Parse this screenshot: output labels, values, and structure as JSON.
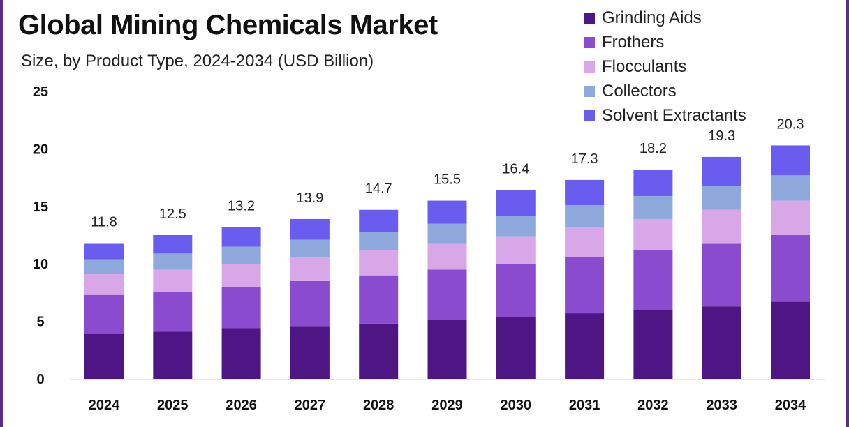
{
  "chart_data": {
    "type": "bar",
    "stacked": true,
    "title": "Global Mining Chemicals Market",
    "subtitle": "Size, by Product Type, 2024-2034 (USD Billion)",
    "xlabel": "",
    "ylabel": "",
    "ylim": [
      0,
      25
    ],
    "yticks": [
      "0",
      "5",
      "10",
      "15",
      "20",
      "25"
    ],
    "categories": [
      "2024",
      "2025",
      "2026",
      "2027",
      "2028",
      "2029",
      "2030",
      "2031",
      "2032",
      "2033",
      "2034"
    ],
    "totals": [
      "11.8",
      "12.5",
      "13.2",
      "13.9",
      "14.7",
      "15.5",
      "16.4",
      "17.3",
      "18.2",
      "19.3",
      "20.3"
    ],
    "legend_position": "top-right",
    "series": [
      {
        "name": "Grinding Aids",
        "color": "#4e1585",
        "values": [
          3.9,
          4.1,
          4.4,
          4.6,
          4.8,
          5.1,
          5.4,
          5.7,
          6.0,
          6.3,
          6.7
        ]
      },
      {
        "name": "Frothers",
        "color": "#8a4bcf",
        "values": [
          3.4,
          3.5,
          3.6,
          3.9,
          4.2,
          4.4,
          4.6,
          4.9,
          5.2,
          5.5,
          5.8
        ]
      },
      {
        "name": "Flocculants",
        "color": "#d8a7e8",
        "values": [
          1.8,
          1.9,
          2.0,
          2.1,
          2.2,
          2.3,
          2.4,
          2.6,
          2.7,
          2.9,
          3.0
        ]
      },
      {
        "name": "Collectors",
        "color": "#8fa9dc",
        "values": [
          1.3,
          1.4,
          1.5,
          1.5,
          1.6,
          1.7,
          1.8,
          1.9,
          2.0,
          2.1,
          2.2
        ]
      },
      {
        "name": "Solvent Extractants",
        "color": "#6b5cf0",
        "values": [
          1.4,
          1.6,
          1.7,
          1.8,
          1.9,
          2.0,
          2.2,
          2.2,
          2.3,
          2.5,
          2.6
        ]
      }
    ]
  }
}
